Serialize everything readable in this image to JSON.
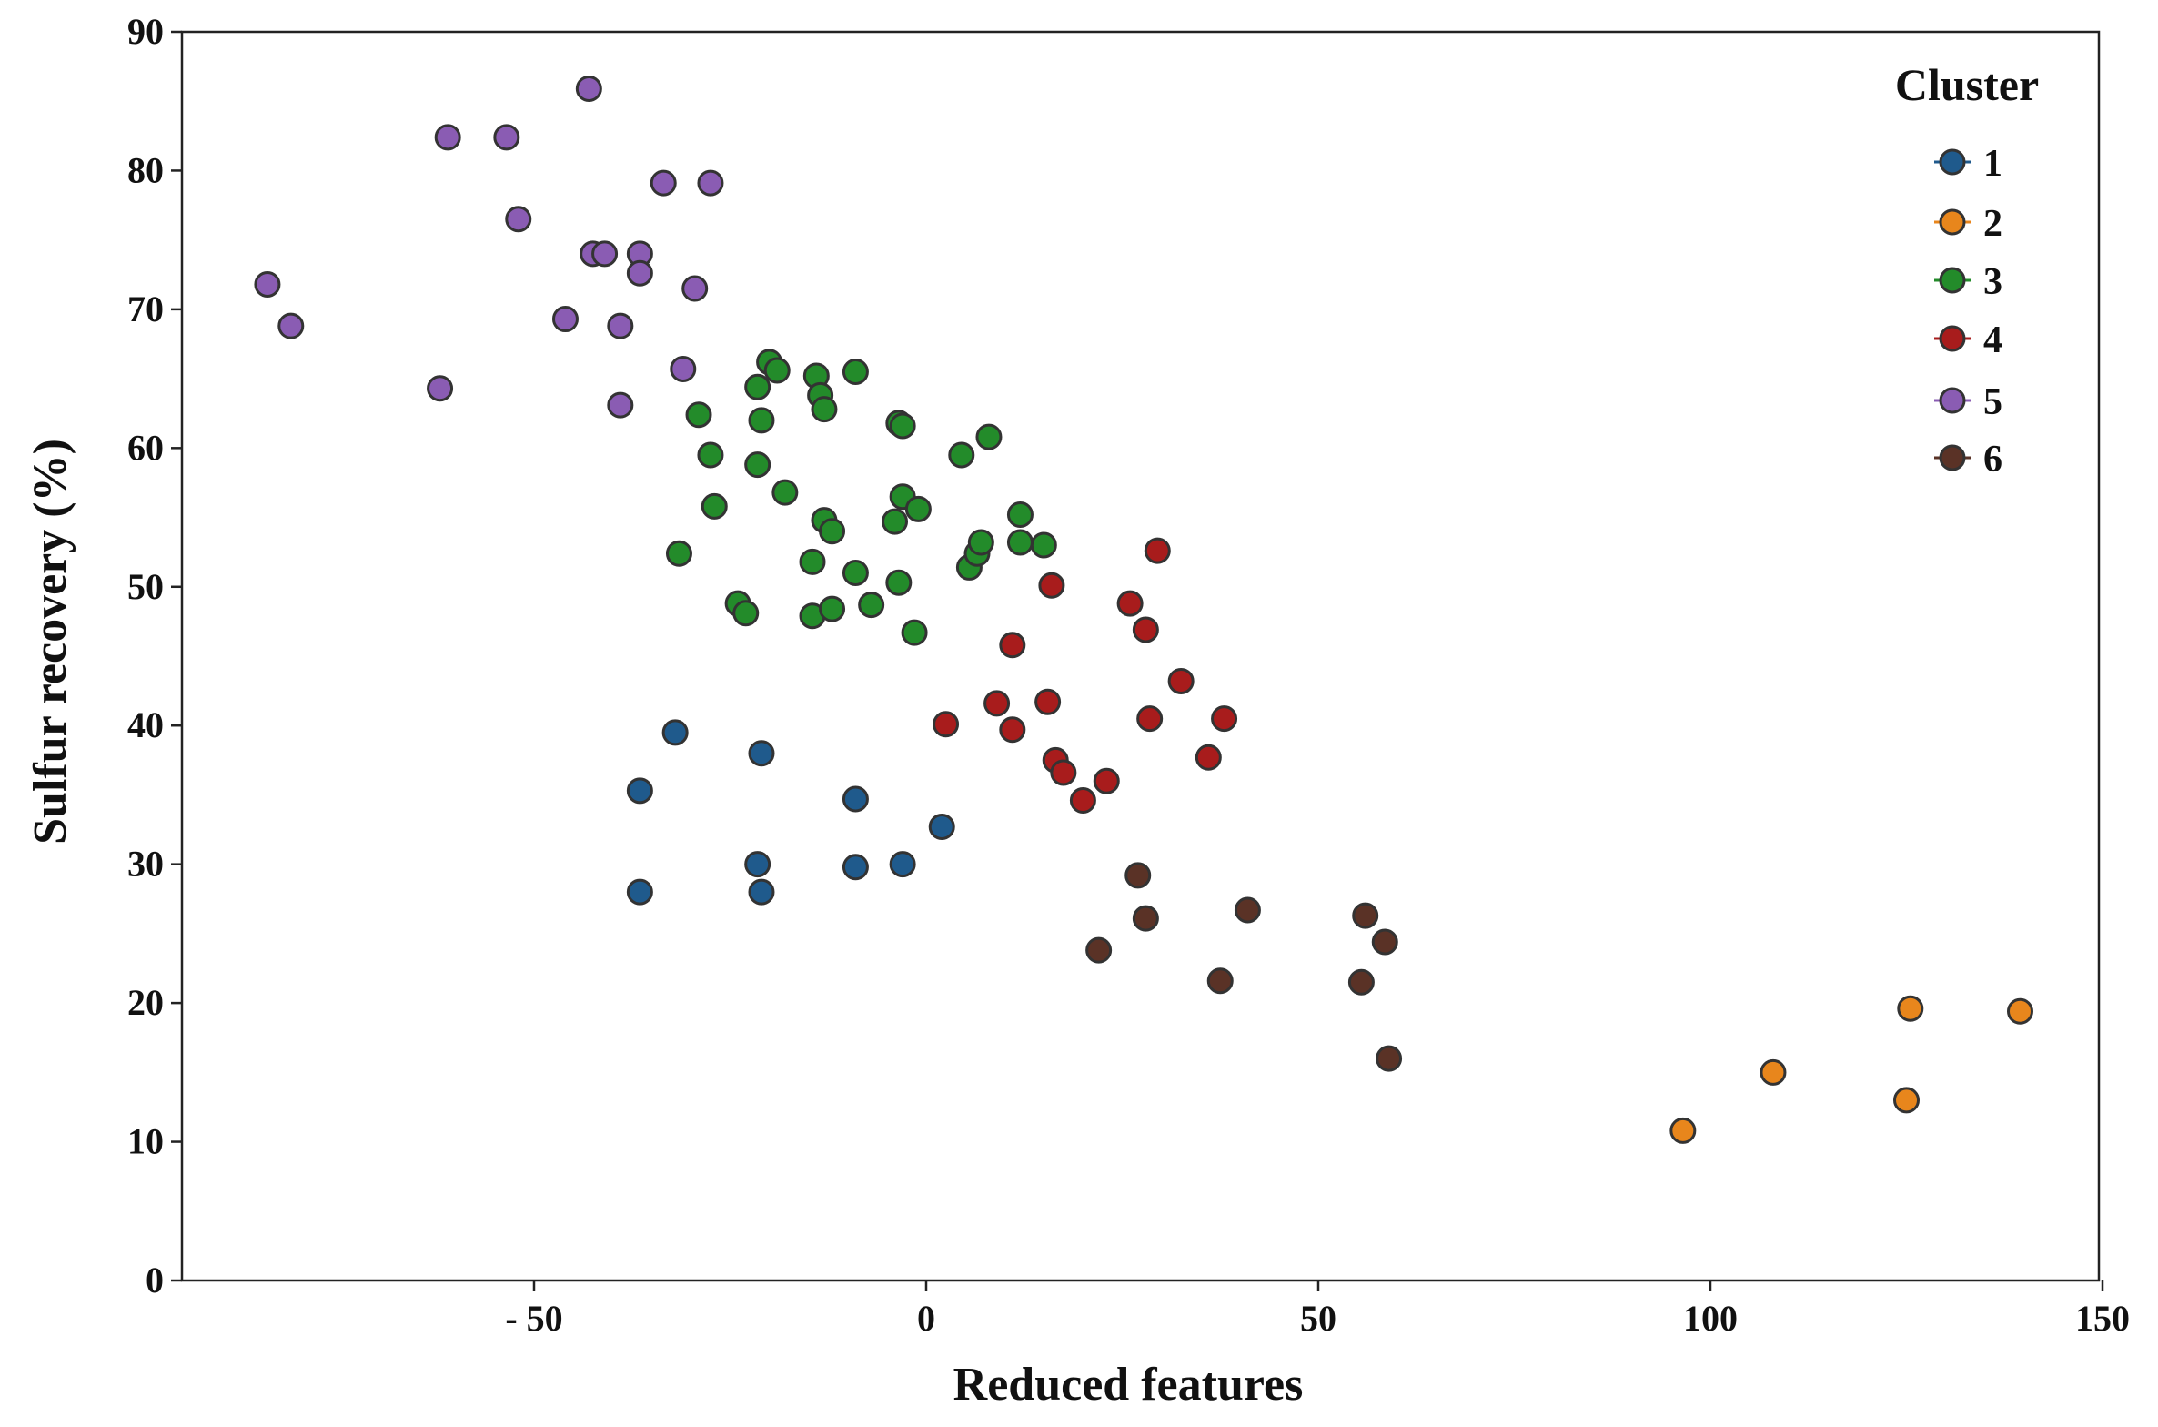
{
  "chart_data": {
    "type": "scatter",
    "xlabel": "Reduced features",
    "ylabel": "Sulfur recovery (%)",
    "xlim": [
      -95,
      150
    ],
    "ylim": [
      0,
      90
    ],
    "x_ticks": [
      -50,
      0,
      50,
      100,
      150
    ],
    "x_tick_labels": [
      "- 50",
      "0",
      "50",
      "100",
      "150"
    ],
    "y_ticks": [
      0,
      10,
      20,
      30,
      40,
      50,
      60,
      70,
      80,
      90
    ],
    "y_tick_labels": [
      "0",
      "10",
      "20",
      "30",
      "40",
      "50",
      "60",
      "70",
      "80",
      "90"
    ],
    "grid": false,
    "legend": {
      "title": "Cluster",
      "placement": "top-right"
    },
    "series": [
      {
        "name": "1",
        "color": "#1f5a8c",
        "x": [
          -32,
          -36.5,
          -36.5,
          -21,
          -21.5,
          -21,
          -9,
          -9,
          -3,
          2
        ],
        "y": [
          39.5,
          35.3,
          28,
          38,
          30,
          28,
          34.7,
          29.8,
          30,
          32.7
        ]
      },
      {
        "name": "2",
        "color": "#e8861c",
        "x": [
          96.5,
          108,
          125.5,
          125,
          139.5
        ],
        "y": [
          10.8,
          15,
          19.6,
          13,
          19.4
        ]
      },
      {
        "name": "3",
        "color": "#238b2a",
        "x": [
          -20,
          -19,
          -21.5,
          -21,
          -14,
          -13.5,
          -13,
          -9,
          -3.5,
          -3,
          -29,
          -27.5,
          -21.5,
          -18,
          -27,
          -31.5,
          -14.5,
          -13,
          -12,
          -9,
          -4,
          -3,
          -1,
          4.5,
          8,
          12,
          15,
          12,
          5.5,
          6.5,
          7,
          -24,
          -23,
          -14.5,
          -12,
          -7,
          -3.5,
          -1.5
        ],
        "y": [
          66.2,
          65.6,
          64.4,
          62,
          65.2,
          63.8,
          62.8,
          65.5,
          61.8,
          61.6,
          62.4,
          59.5,
          58.8,
          56.8,
          55.8,
          52.4,
          51.8,
          54.8,
          54,
          51,
          54.7,
          56.5,
          55.6,
          59.5,
          60.8,
          55.2,
          53,
          53.2,
          51.4,
          52.4,
          53.2,
          48.8,
          48.1,
          47.9,
          48.4,
          48.7,
          50.3,
          46.7
        ]
      },
      {
        "name": "4",
        "color": "#a81c1c",
        "x": [
          2.5,
          9,
          11,
          11,
          15.5,
          16,
          16.5,
          17.5,
          20,
          23,
          26,
          28,
          28.5,
          29.5,
          32.5,
          36,
          38
        ],
        "y": [
          40.1,
          41.6,
          39.7,
          45.8,
          41.7,
          50.1,
          37.5,
          36.6,
          34.6,
          36,
          48.8,
          46.9,
          40.5,
          52.6,
          43.2,
          37.7,
          40.5
        ]
      },
      {
        "name": "5",
        "color": "#8a5cb3",
        "x": [
          -43,
          -61,
          -53.5,
          -52,
          -33.5,
          -27.5,
          -42.5,
          -41,
          -36.5,
          -36.5,
          -29.5,
          -84,
          -81,
          -46,
          -39,
          -62,
          -31,
          -39
        ],
        "y": [
          85.9,
          82.4,
          82.4,
          76.5,
          79.1,
          79.1,
          74,
          74,
          74,
          72.6,
          71.5,
          71.8,
          68.8,
          69.3,
          68.8,
          64.3,
          65.7,
          63.1
        ]
      },
      {
        "name": "6",
        "color": "#5a3226",
        "x": [
          27,
          28,
          22,
          37.5,
          41,
          55.5,
          56,
          58.5,
          59
        ],
        "y": [
          29.2,
          26.1,
          23.8,
          21.6,
          26.7,
          21.5,
          26.3,
          24.4,
          16
        ]
      }
    ]
  }
}
